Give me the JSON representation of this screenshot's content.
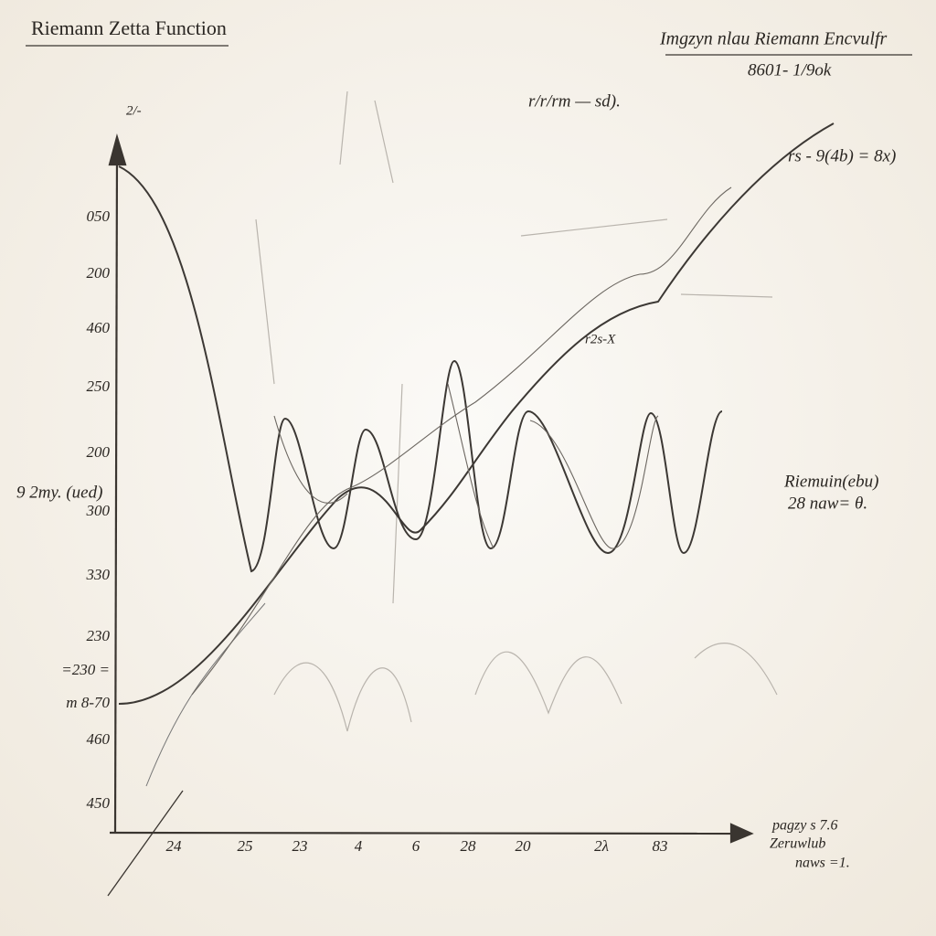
{
  "header": {
    "title": "Riemann Zetta Function"
  },
  "notes": [
    "Imgzyn nlau Riemann Encvulfr",
    "8601- 1/9ok",
    "r/r/rm — sd).",
    "rs - 9(4b) = 8x)",
    "2/-",
    "r2s-X",
    "Riemuin(ebu)",
    "28 naw= θ.",
    "pagzy s 7.6",
    "Zeruwlub",
    "naws =1."
  ],
  "axis": {
    "y_label": "9 2my. (ued)",
    "y_ticks": [
      "050",
      "200",
      "460",
      "250",
      "200",
      "300",
      "330",
      "230",
      "=230 =",
      "m 8-70",
      "460",
      "450"
    ],
    "x_ticks": [
      "24",
      "25",
      "23",
      "4",
      "6",
      "28",
      "20",
      "2λ",
      "83"
    ]
  }
}
